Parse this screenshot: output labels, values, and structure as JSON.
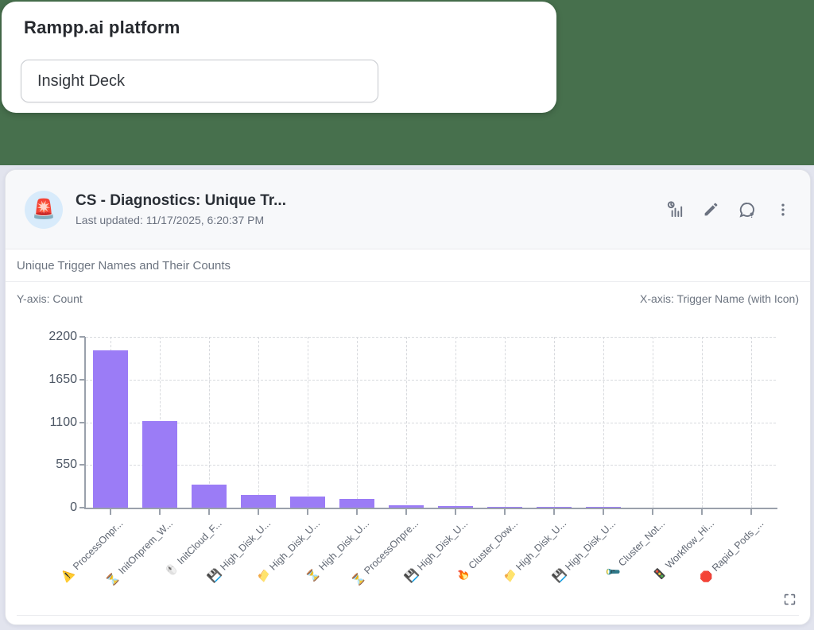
{
  "page": {
    "background": "#e2e4ee",
    "banner_color": "#47704d"
  },
  "platform_panel": {
    "title": "Rampp.ai platform",
    "deck_input_value": "Insight Deck"
  },
  "widget": {
    "avatar_icon": "🚨",
    "title": "CS - Diagnostics: Unique Tr...",
    "last_updated": "Last updated: 11/17/2025, 6:20:37 PM",
    "toolbar_icons": [
      "chart-history",
      "edit",
      "comment-question",
      "kebab-menu"
    ],
    "section_title": "Unique Trigger Names and Their Counts",
    "y_axis_note": "Y-axis: Count",
    "x_axis_note": "X-axis: Trigger Name (with Icon)"
  },
  "chart_data": {
    "type": "bar",
    "title": "Unique Trigger Names and Their Counts",
    "ylabel": "Count",
    "xlabel": "Trigger Name (with Icon)",
    "ylim": [
      0,
      2200
    ],
    "yticks": [
      0,
      550,
      1100,
      1650,
      2200
    ],
    "grid": true,
    "legend": false,
    "bar_color": "#9b7cf6",
    "categories": [
      {
        "icon": "⚠️",
        "icon_name": "warning-icon",
        "label": "ProcessOnpr..."
      },
      {
        "icon": "⏳",
        "icon_name": "hourglass-icon",
        "label": "InitOnprem_W..."
      },
      {
        "icon": "🖱️",
        "icon_name": "mouse-icon",
        "label": "InitCloud_F..."
      },
      {
        "icon": "💾",
        "icon_name": "floppy-disk-icon",
        "label": "High_Disk_U..."
      },
      {
        "icon": "📁",
        "icon_name": "folder-icon",
        "label": "High_Disk_U..."
      },
      {
        "icon": "⏳",
        "icon_name": "hourglass-icon",
        "label": "High_Disk_U..."
      },
      {
        "icon": "⏳",
        "icon_name": "hourglass-icon",
        "label": "ProcessOnpre..."
      },
      {
        "icon": "💾",
        "icon_name": "floppy-disk-icon",
        "label": "High_Disk_U..."
      },
      {
        "icon": "🔥",
        "icon_name": "fire-icon",
        "label": "Cluster_Dow..."
      },
      {
        "icon": "📁",
        "icon_name": "folder-icon",
        "label": "High_Disk_U..."
      },
      {
        "icon": "💾",
        "icon_name": "floppy-disk-icon",
        "label": "High_Disk_U..."
      },
      {
        "icon": "🔦",
        "icon_name": "flashlight-icon",
        "label": "Cluster_Not..."
      },
      {
        "icon": "🚦",
        "icon_name": "traffic-light-icon",
        "label": "Workflow_Hi..."
      },
      {
        "icon": "🛑",
        "icon_name": "stop-sign-icon",
        "label": "Rapid_Pods_..."
      }
    ],
    "values": [
      2026,
      1113,
      295,
      164,
      146,
      116,
      35,
      20,
      14,
      12,
      8,
      5,
      3,
      2
    ]
  }
}
